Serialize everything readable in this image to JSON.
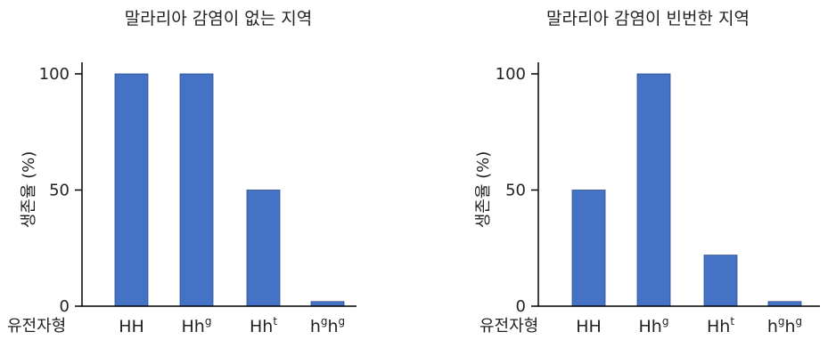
{
  "chart_data": [
    {
      "type": "bar",
      "title": "말라리아 감염이 없는 지역",
      "ylabel": "생존율 (%)",
      "xlabel": "유전자형",
      "ylim": [
        0,
        100
      ],
      "yticks": [
        "0",
        "50",
        "100"
      ],
      "categories": [
        "HH",
        "Hhg",
        "Hht",
        "hghg"
      ],
      "category_parts": [
        {
          "base": "HH",
          "sup": ""
        },
        {
          "base": "Hh",
          "sup": "g"
        },
        {
          "base": "Hh",
          "sup": "t"
        },
        {
          "base": "h",
          "sup": "g",
          "base2": "h",
          "sup2": "g"
        }
      ],
      "values": [
        100,
        100,
        50,
        2
      ],
      "grid": false
    },
    {
      "type": "bar",
      "title": "말라리아 감염이 빈번한 지역",
      "ylabel": "생존율 (%)",
      "xlabel": "유전자형",
      "ylim": [
        0,
        100
      ],
      "yticks": [
        "0",
        "50",
        "100"
      ],
      "categories": [
        "HH",
        "Hhg",
        "Hht",
        "hghg"
      ],
      "category_parts": [
        {
          "base": "HH",
          "sup": ""
        },
        {
          "base": "Hh",
          "sup": "g"
        },
        {
          "base": "Hh",
          "sup": "t"
        },
        {
          "base": "h",
          "sup": "g",
          "base2": "h",
          "sup2": "g"
        }
      ],
      "values": [
        50,
        100,
        22,
        2
      ],
      "grid": false
    }
  ],
  "colors": {
    "bar": "#4472c4",
    "bar_edge": "#2f4f8f",
    "axis": "#000000"
  }
}
